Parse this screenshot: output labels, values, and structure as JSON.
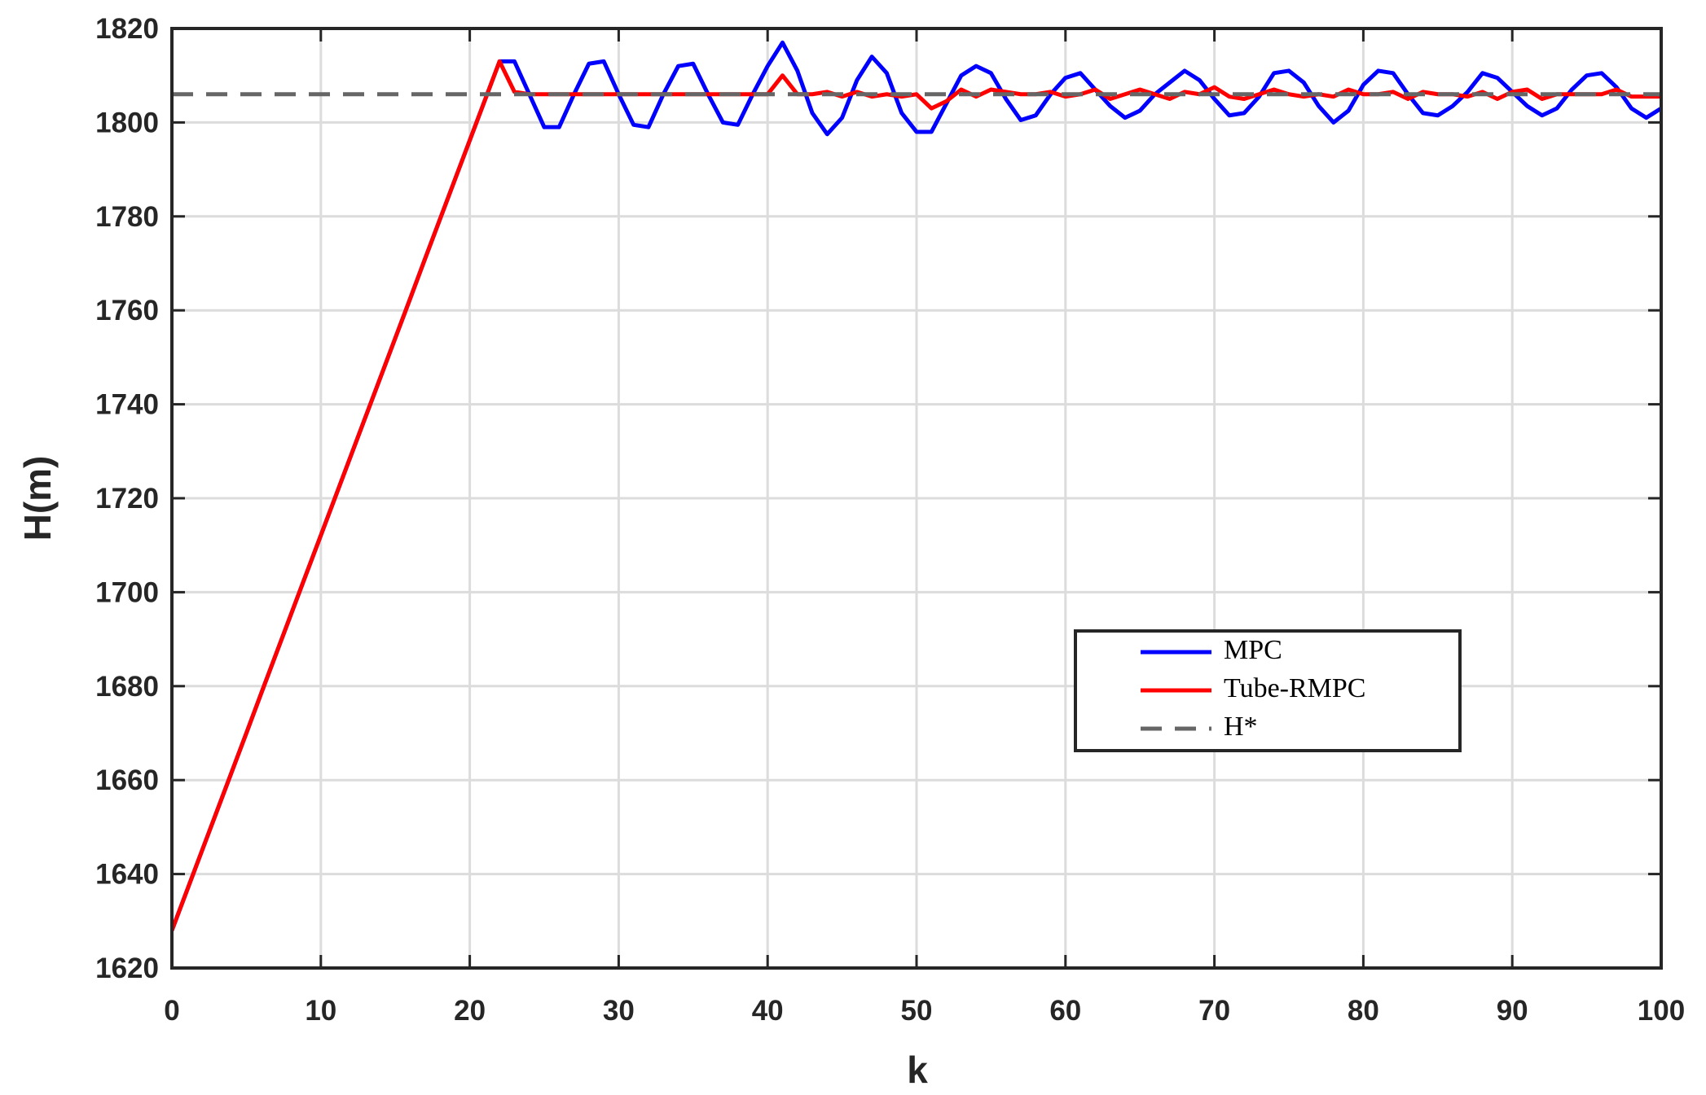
{
  "chart_data": {
    "type": "line",
    "xlabel": "k",
    "ylabel": "H(m)",
    "xlim": [
      0,
      100
    ],
    "ylim": [
      1620,
      1820
    ],
    "xticks": [
      0,
      10,
      20,
      30,
      40,
      50,
      60,
      70,
      80,
      90,
      100
    ],
    "yticks": [
      1620,
      1640,
      1660,
      1680,
      1700,
      1720,
      1740,
      1760,
      1780,
      1800,
      1820
    ],
    "grid": true,
    "legend": "lower-right",
    "x": [
      0,
      1,
      2,
      3,
      4,
      5,
      6,
      7,
      8,
      9,
      10,
      11,
      12,
      13,
      14,
      15,
      16,
      17,
      18,
      19,
      20,
      21,
      22,
      23,
      24,
      25,
      26,
      27,
      28,
      29,
      30,
      31,
      32,
      33,
      34,
      35,
      36,
      37,
      38,
      39,
      40,
      41,
      42,
      43,
      44,
      45,
      46,
      47,
      48,
      49,
      50,
      51,
      52,
      53,
      54,
      55,
      56,
      57,
      58,
      59,
      60,
      61,
      62,
      63,
      64,
      65,
      66,
      67,
      68,
      69,
      70,
      71,
      72,
      73,
      74,
      75,
      76,
      77,
      78,
      79,
      80,
      81,
      82,
      83,
      84,
      85,
      86,
      87,
      88,
      89,
      90,
      91,
      92,
      93,
      94,
      95,
      96,
      97,
      98,
      99,
      100
    ],
    "series": [
      {
        "name": "MPC",
        "color": "#0000ff",
        "dash": false,
        "values": [
          1628,
          1636.4,
          1644.8,
          1653.2,
          1661.6,
          1670,
          1678.5,
          1686.9,
          1695.3,
          1703.7,
          1712.1,
          1720.5,
          1728.9,
          1737.3,
          1745.7,
          1754.1,
          1762.5,
          1771,
          1779.4,
          1787.8,
          1796.2,
          1804.6,
          1813,
          1813,
          1806,
          1799,
          1799,
          1806,
          1812.5,
          1813,
          1806,
          1799.5,
          1799,
          1806,
          1812,
          1812.5,
          1806,
          1800,
          1799.5,
          1806,
          1812,
          1817,
          1811,
          1802,
          1797.5,
          1801,
          1809,
          1814,
          1810.5,
          1802,
          1798,
          1798,
          1804,
          1810,
          1812,
          1810.5,
          1805,
          1800.5,
          1801.5,
          1806,
          1809.5,
          1810.5,
          1807,
          1803.5,
          1801,
          1802.5,
          1806,
          1808.5,
          1811,
          1809,
          1805,
          1801.5,
          1802,
          1805.5,
          1810.5,
          1811,
          1808.5,
          1803.5,
          1800,
          1802.5,
          1808,
          1811,
          1810.5,
          1806,
          1802,
          1801.5,
          1803.5,
          1806.5,
          1810.5,
          1809.5,
          1806.5,
          1803.5,
          1801.5,
          1803,
          1807,
          1810,
          1810.5,
          1807.5,
          1803,
          1801,
          1803
        ]
      },
      {
        "name": "Tube-RMPC",
        "color": "#ff0000",
        "dash": false,
        "values": [
          1628,
          1636.4,
          1644.8,
          1653.2,
          1661.6,
          1670,
          1678.5,
          1686.9,
          1695.3,
          1703.7,
          1712.1,
          1720.5,
          1728.9,
          1737.3,
          1745.7,
          1754.1,
          1762.5,
          1771,
          1779.4,
          1787.8,
          1796.2,
          1804.6,
          1813,
          1806.5,
          1806,
          1806,
          1806,
          1806,
          1806,
          1806,
          1806,
          1806,
          1806,
          1806,
          1806,
          1806,
          1806,
          1806,
          1806,
          1806,
          1806,
          1810,
          1806,
          1806,
          1806.5,
          1805.5,
          1806.5,
          1805.5,
          1806,
          1805.5,
          1806,
          1803,
          1804.5,
          1807,
          1805.5,
          1807,
          1806.5,
          1806,
          1806,
          1806.5,
          1805.5,
          1806,
          1807,
          1805,
          1806,
          1807,
          1806,
          1805,
          1806.5,
          1806,
          1807.5,
          1805.5,
          1805,
          1806,
          1807,
          1806,
          1805.5,
          1806,
          1805.5,
          1807,
          1806,
          1806,
          1806.5,
          1805,
          1806.5,
          1806,
          1806,
          1805.5,
          1806.5,
          1805,
          1806.5,
          1807,
          1805,
          1806,
          1806,
          1806,
          1806,
          1807,
          1805.5,
          1805.5,
          1805.5
        ]
      },
      {
        "name": "H*",
        "color": "#666666",
        "dash": true,
        "x": [
          0,
          100
        ],
        "values": [
          1806,
          1806
        ]
      }
    ]
  }
}
